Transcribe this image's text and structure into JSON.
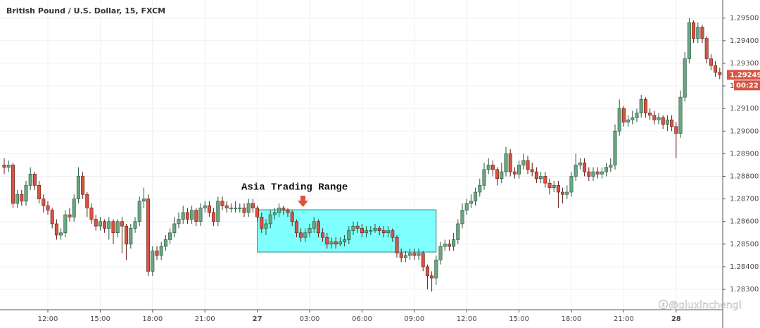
{
  "chart_data": {
    "type": "candlestick",
    "title": "British Pound / U.S. Dollar, 15, FXCM",
    "up_color": "#6ba583",
    "down_color": "#d75442",
    "grid": true,
    "ylim": [
      1.2821,
      1.2958
    ],
    "yticks": [
      {
        "value": 1.283,
        "label": "1.28300"
      },
      {
        "value": 1.284,
        "label": "1.28400"
      },
      {
        "value": 1.285,
        "label": "1.28500"
      },
      {
        "value": 1.286,
        "label": "1.28600"
      },
      {
        "value": 1.287,
        "label": "1.28700"
      },
      {
        "value": 1.288,
        "label": "1.28800"
      },
      {
        "value": 1.289,
        "label": "1.28900"
      },
      {
        "value": 1.29,
        "label": "1.29000"
      },
      {
        "value": 1.291,
        "label": "1.29100"
      },
      {
        "value": 1.292,
        "label": "1.29200"
      },
      {
        "value": 1.293,
        "label": "1.29300"
      },
      {
        "value": 1.294,
        "label": "1.29400"
      },
      {
        "value": 1.295,
        "label": "1.29500"
      }
    ],
    "xticks": [
      {
        "value": 10,
        "label": "12:00"
      },
      {
        "value": 22,
        "label": "15:00"
      },
      {
        "value": 34,
        "label": "18:00"
      },
      {
        "value": 46,
        "label": "21:00"
      },
      {
        "value": 58,
        "label": "27"
      },
      {
        "value": 70,
        "label": "03:00"
      },
      {
        "value": 82,
        "label": "06:00"
      },
      {
        "value": 94,
        "label": "09:00"
      },
      {
        "value": 106,
        "label": "12:00"
      },
      {
        "value": 118,
        "label": "15:00"
      },
      {
        "value": 130,
        "label": "18:00"
      },
      {
        "value": 142,
        "label": "21:00"
      },
      {
        "value": 154,
        "label": "28"
      }
    ],
    "open": [
      1.2885,
      1.2884,
      1.2885,
      1.2868,
      1.2872,
      1.2869,
      1.2876,
      1.2881,
      1.2876,
      1.287,
      1.2867,
      1.2865,
      1.2859,
      1.2854,
      1.2855,
      1.2863,
      1.2862,
      1.287,
      1.288,
      1.2872,
      1.2866,
      1.2861,
      1.2858,
      1.286,
      1.2857,
      1.286,
      1.2855,
      1.286,
      1.2858,
      1.285,
      1.2857,
      1.286,
      1.2869,
      1.287,
      1.2838,
      1.2847,
      1.2845,
      1.2849,
      1.2852,
      1.2855,
      1.2859,
      1.2861,
      1.2864,
      1.2861,
      1.2865,
      1.286,
      1.2866,
      1.2867,
      1.2864,
      1.286,
      1.2869,
      1.2867,
      1.2866,
      1.2866,
      1.2866,
      1.2866,
      1.2864,
      1.2868,
      1.2866,
      1.2862,
      1.2857,
      1.2859,
      1.2863,
      1.2864,
      1.2866,
      1.2865,
      1.2864,
      1.286,
      1.2855,
      1.2853,
      1.2855,
      1.2857,
      1.286,
      1.2855,
      1.2853,
      1.285,
      1.2851,
      1.285,
      1.2851,
      1.2852,
      1.2856,
      1.2858,
      1.2857,
      1.2855,
      1.2856,
      1.2856,
      1.2857,
      1.2856,
      1.2855,
      1.2856,
      1.2853,
      1.2846,
      1.2844,
      1.2845,
      1.2846,
      1.2845,
      1.2846,
      1.284,
      1.2836,
      1.2835,
      1.2843,
      1.2849,
      1.285,
      1.2849,
      1.2852,
      1.2859,
      1.2865,
      1.2868,
      1.2869,
      1.2873,
      1.2876,
      1.2883,
      1.2885,
      1.2883,
      1.2879,
      1.2882,
      1.289,
      1.2882,
      1.2881,
      1.2885,
      1.2887,
      1.2883,
      1.2882,
      1.2879,
      1.288,
      1.2877,
      1.2875,
      1.2876,
      1.2873,
      1.2872,
      1.2873,
      1.288,
      1.2885,
      1.2886,
      1.2882,
      1.288,
      1.2882,
      1.2881,
      1.2882,
      1.2884,
      1.2885,
      1.29,
      1.291,
      1.2904,
      1.2905,
      1.2906,
      1.2908,
      1.2914,
      1.2908,
      1.2907,
      1.2905,
      1.2906,
      1.2903,
      1.2905,
      1.2902,
      1.2899,
      1.2915,
      1.2932,
      1.2948,
      1.2941,
      1.2946,
      1.2941,
      1.2932,
      1.2929,
      1.2926
    ],
    "high": [
      1.2888,
      1.2887,
      1.2886,
      1.2874,
      1.2874,
      1.2878,
      1.2884,
      1.2882,
      1.2878,
      1.2872,
      1.2869,
      1.2866,
      1.2861,
      1.2857,
      1.2865,
      1.2866,
      1.2872,
      1.2884,
      1.2882,
      1.2873,
      1.2868,
      1.2863,
      1.2862,
      1.2861,
      1.2862,
      1.2861,
      1.2861,
      1.2862,
      1.2859,
      1.2859,
      1.2862,
      1.2871,
      1.2875,
      1.2872,
      1.2849,
      1.2849,
      1.2851,
      1.2854,
      1.2857,
      1.2862,
      1.2864,
      1.2867,
      1.2866,
      1.2867,
      1.2866,
      1.2868,
      1.2869,
      1.2869,
      1.2866,
      1.2871,
      1.2871,
      1.2869,
      1.2868,
      1.2869,
      1.2868,
      1.2868,
      1.287,
      1.287,
      1.2867,
      1.2864,
      1.2861,
      1.2865,
      1.2866,
      1.2868,
      1.2867,
      1.2866,
      1.2865,
      1.2861,
      1.2857,
      1.2857,
      1.2859,
      1.2862,
      1.2861,
      1.2857,
      1.2855,
      1.2853,
      1.2853,
      1.2853,
      1.2854,
      1.2858,
      1.286,
      1.286,
      1.2859,
      1.2858,
      1.2858,
      1.2859,
      1.2858,
      1.2858,
      1.2858,
      1.2857,
      1.2854,
      1.2848,
      1.2847,
      1.2848,
      1.2848,
      1.2848,
      1.2847,
      1.2841,
      1.2838,
      1.2845,
      1.2851,
      1.2852,
      1.2852,
      1.2855,
      1.2861,
      1.2868,
      1.287,
      1.2872,
      1.2875,
      1.2879,
      1.2886,
      1.2888,
      1.2887,
      1.2884,
      1.2886,
      1.2893,
      1.2892,
      1.2884,
      1.2887,
      1.289,
      1.2889,
      1.2886,
      1.2884,
      1.2882,
      1.2882,
      1.2879,
      1.2878,
      1.2878,
      1.2875,
      1.2876,
      1.2882,
      1.289,
      1.2888,
      1.2888,
      1.2884,
      1.2884,
      1.2884,
      1.2884,
      1.2886,
      1.2888,
      1.2903,
      1.2914,
      1.2911,
      1.2907,
      1.2909,
      1.291,
      1.2916,
      1.2915,
      1.291,
      1.2909,
      1.2908,
      1.2907,
      1.2907,
      1.2907,
      1.2904,
      1.2918,
      1.2935,
      1.295,
      1.2949,
      1.2948,
      1.2947,
      1.2942,
      1.2934,
      1.2931,
      1.2928
    ],
    "low": [
      1.2881,
      1.2882,
      1.2866,
      1.2866,
      1.2867,
      1.2867,
      1.2874,
      1.2874,
      1.2868,
      1.2864,
      1.2863,
      1.2857,
      1.2852,
      1.2852,
      1.2853,
      1.286,
      1.286,
      1.2868,
      1.287,
      1.2862,
      1.2859,
      1.2856,
      1.2856,
      1.2855,
      1.2852,
      1.285,
      1.2853,
      1.2846,
      1.2843,
      1.2848,
      1.2855,
      1.2858,
      1.2866,
      1.2836,
      1.2836,
      1.2843,
      1.2843,
      1.2847,
      1.285,
      1.2853,
      1.2857,
      1.2859,
      1.2859,
      1.2859,
      1.2858,
      1.2858,
      1.2864,
      1.2862,
      1.2858,
      1.2858,
      1.2865,
      1.2864,
      1.2864,
      1.2864,
      1.2864,
      1.2862,
      1.2862,
      1.2864,
      1.286,
      1.2855,
      1.2854,
      1.2857,
      1.2861,
      1.2862,
      1.2863,
      1.2862,
      1.2858,
      1.2853,
      1.2851,
      1.2851,
      1.2853,
      1.2855,
      1.2853,
      1.2851,
      1.2848,
      1.2848,
      1.2848,
      1.2849,
      1.2849,
      1.285,
      1.2854,
      1.2855,
      1.2853,
      1.2853,
      1.2854,
      1.2855,
      1.2854,
      1.2853,
      1.2853,
      1.2851,
      1.2844,
      1.2842,
      1.2842,
      1.2843,
      1.2843,
      1.2843,
      1.2838,
      1.283,
      1.2829,
      1.2832,
      1.2841,
      1.2847,
      1.2847,
      1.2847,
      1.285,
      1.2857,
      1.2863,
      1.2866,
      1.2867,
      1.2871,
      1.2874,
      1.2881,
      1.288,
      1.2876,
      1.2877,
      1.288,
      1.288,
      1.2879,
      1.2879,
      1.2883,
      1.2881,
      1.288,
      1.2877,
      1.2877,
      1.2875,
      1.2872,
      1.2873,
      1.2866,
      1.2868,
      1.287,
      1.2871,
      1.2878,
      1.2883,
      1.288,
      1.2878,
      1.2878,
      1.2879,
      1.2879,
      1.288,
      1.2882,
      1.2883,
      1.2898,
      1.2902,
      1.2902,
      1.2903,
      1.2904,
      1.2906,
      1.2906,
      1.2905,
      1.2903,
      1.2903,
      1.2901,
      1.29,
      1.29,
      1.2888,
      1.2897,
      1.2913,
      1.293,
      1.2939,
      1.2939,
      1.2939,
      1.293,
      1.2927,
      1.2924,
      1.2923
    ],
    "close": [
      1.2884,
      1.2885,
      1.2868,
      1.2872,
      1.2869,
      1.2876,
      1.2881,
      1.2876,
      1.287,
      1.2867,
      1.2865,
      1.2859,
      1.2854,
      1.2855,
      1.2863,
      1.2862,
      1.287,
      1.288,
      1.2872,
      1.2866,
      1.2861,
      1.2858,
      1.286,
      1.2857,
      1.286,
      1.2855,
      1.286,
      1.2858,
      1.285,
      1.2857,
      1.286,
      1.2869,
      1.287,
      1.2838,
      1.2847,
      1.2845,
      1.2849,
      1.2852,
      1.2855,
      1.2859,
      1.2861,
      1.2864,
      1.2861,
      1.2865,
      1.286,
      1.2866,
      1.2867,
      1.2864,
      1.286,
      1.2869,
      1.2867,
      1.2866,
      1.2866,
      1.2866,
      1.2866,
      1.2864,
      1.2868,
      1.2866,
      1.2862,
      1.2857,
      1.2859,
      1.2863,
      1.2864,
      1.2866,
      1.2865,
      1.2864,
      1.286,
      1.2855,
      1.2853,
      1.2855,
      1.2857,
      1.286,
      1.2855,
      1.2853,
      1.285,
      1.2851,
      1.285,
      1.2851,
      1.2852,
      1.2856,
      1.2858,
      1.2857,
      1.2855,
      1.2856,
      1.2856,
      1.2857,
      1.2856,
      1.2855,
      1.2856,
      1.2853,
      1.2846,
      1.2844,
      1.2845,
      1.2846,
      1.2845,
      1.2846,
      1.284,
      1.2836,
      1.2835,
      1.2843,
      1.2849,
      1.285,
      1.2849,
      1.2852,
      1.2859,
      1.2865,
      1.2868,
      1.2869,
      1.2873,
      1.2876,
      1.2883,
      1.2885,
      1.2883,
      1.2879,
      1.2882,
      1.289,
      1.2882,
      1.2881,
      1.2885,
      1.2887,
      1.2883,
      1.2882,
      1.2879,
      1.288,
      1.2877,
      1.2875,
      1.2876,
      1.2873,
      1.2872,
      1.2873,
      1.288,
      1.2885,
      1.2886,
      1.2882,
      1.288,
      1.2882,
      1.2881,
      1.2882,
      1.2884,
      1.2885,
      1.29,
      1.291,
      1.2904,
      1.2905,
      1.2906,
      1.2908,
      1.2914,
      1.2908,
      1.2907,
      1.2905,
      1.2906,
      1.2903,
      1.2905,
      1.2902,
      1.2899,
      1.2915,
      1.2932,
      1.2948,
      1.2941,
      1.2946,
      1.2941,
      1.2932,
      1.2929,
      1.2926,
      1.29249
    ],
    "range_box": {
      "from": 58,
      "to": 99,
      "high": 1.28652,
      "low": 1.28465,
      "color": "#80ffff"
    },
    "annotation": "Asia Trading Range",
    "last_price": {
      "value": 1.29249,
      "label": "1.29249"
    },
    "countdown": "00:22",
    "watermark": "@qiuxinchengl"
  }
}
